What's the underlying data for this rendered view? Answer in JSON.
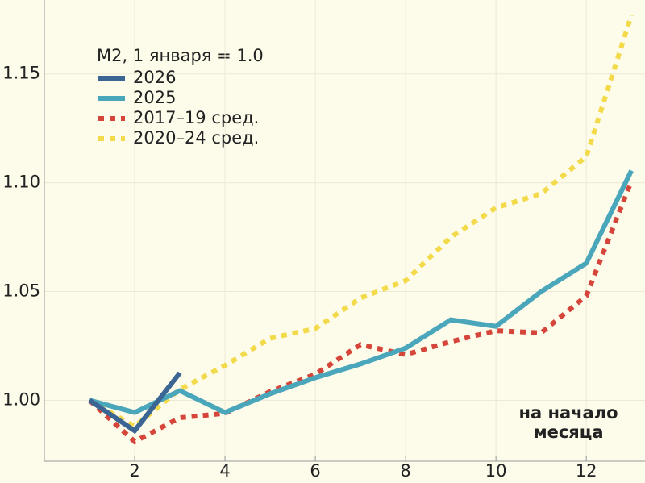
{
  "chart_data": {
    "type": "line",
    "legend_title": "M2, 1 января = 1.0",
    "annotation": "на начало месяца",
    "x": [
      1,
      2,
      3,
      4,
      5,
      6,
      7,
      8,
      9,
      10,
      11,
      12,
      13
    ],
    "series": [
      {
        "name": "2026",
        "color": "#3b6593",
        "dashed": false,
        "values": [
          1.0,
          0.986,
          1.0126,
          null,
          null,
          null,
          null,
          null,
          null,
          null,
          null,
          null,
          null
        ]
      },
      {
        "name": "2025",
        "color": "#4aa6ba",
        "dashed": false,
        "values": [
          1.0,
          0.9944,
          1.0044,
          0.9944,
          1.003,
          1.0104,
          1.0167,
          1.024,
          1.037,
          1.034,
          1.05,
          1.063,
          1.1056
        ]
      },
      {
        "name": "2017–19 сред.",
        "color": "#d6453a",
        "dashed": true,
        "values": [
          1.0,
          0.981,
          0.992,
          0.994,
          1.004,
          1.012,
          1.0256,
          1.021,
          1.027,
          1.032,
          1.031,
          1.048,
          1.1007
        ]
      },
      {
        "name": "2020–24 сред.",
        "color": "#f3da4a",
        "dashed": true,
        "values": [
          1.0,
          0.988,
          1.005,
          1.016,
          1.0285,
          1.033,
          1.047,
          1.055,
          1.075,
          1.0885,
          1.095,
          1.112,
          1.177
        ]
      }
    ],
    "xlim": [
      0,
      13.3
    ],
    "ylim": [
      0.972,
      1.184
    ],
    "xticks": [
      2,
      4,
      6,
      8,
      10,
      12
    ],
    "yticks": [
      {
        "value": 1,
        "label": "1.00"
      },
      1.05,
      {
        "value": 1.1,
        "label": "1.10"
      },
      1.15
    ],
    "grid": true
  }
}
